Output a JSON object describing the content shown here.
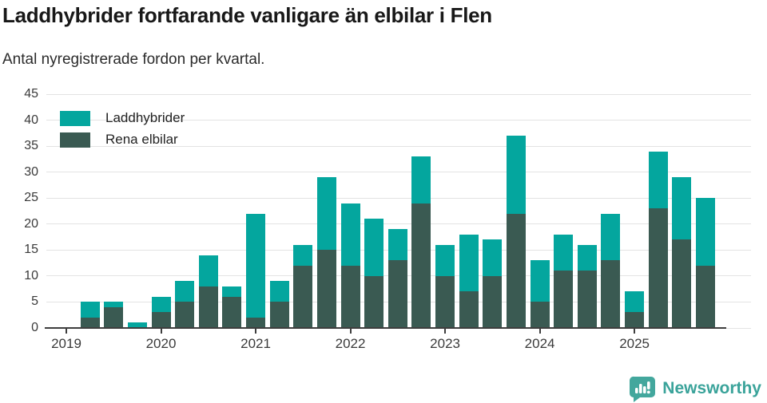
{
  "header": {
    "title": "Laddhybrider fortfarande vanligare än elbilar i Flen",
    "subtitle": "Antal nyregistrerade fordon per kvartal."
  },
  "legend": {
    "items": [
      {
        "label": "Laddhybrider",
        "color": "#04a69e"
      },
      {
        "label": "Rena elbilar",
        "color": "#3a5a52"
      }
    ]
  },
  "footer": {
    "brand": "Newsworthy",
    "brand_color": "#3aa39a",
    "icon": "newsworthy-speech-bubble-bar-chart-icon",
    "icon_color": "#43a79d"
  },
  "chart_data": {
    "type": "bar",
    "stacked": true,
    "title": "Laddhybrider fortfarande vanligare än elbilar i Flen",
    "subtitle": "Antal nyregistrerade fordon per kvartal.",
    "xlabel": "",
    "ylabel": "",
    "ylim": [
      0,
      45
    ],
    "y_ticks": [
      0,
      5,
      10,
      15,
      20,
      25,
      30,
      35,
      40,
      45
    ],
    "grid": true,
    "legend_position": "top-left",
    "x_tick_labels": [
      "2019",
      "2020",
      "2021",
      "2022",
      "2023",
      "2024",
      "2025"
    ],
    "categories": [
      "2019 Q2",
      "2019 Q3",
      "2019 Q4",
      "2020 Q1",
      "2020 Q2",
      "2020 Q3",
      "2020 Q4",
      "2021 Q1",
      "2021 Q2",
      "2021 Q3",
      "2021 Q4",
      "2022 Q1",
      "2022 Q2",
      "2022 Q3",
      "2022 Q4",
      "2023 Q1",
      "2023 Q2",
      "2023 Q3",
      "2023 Q4",
      "2024 Q1",
      "2024 Q2",
      "2024 Q3",
      "2024 Q4",
      "2025 Q1",
      "2025 Q2",
      "2025 Q3",
      "2025 Q4"
    ],
    "first_bar_quarter_offset": 1,
    "series": [
      {
        "name": "Rena elbilar",
        "color": "#3a5a52",
        "values": [
          2,
          4,
          0,
          3,
          5,
          8,
          6,
          2,
          5,
          12,
          15,
          12,
          10,
          13,
          24,
          10,
          7,
          10,
          22,
          5,
          11,
          11,
          13,
          3,
          23,
          17,
          12
        ]
      },
      {
        "name": "Laddhybrider",
        "color": "#04a69e",
        "values": [
          3,
          1,
          1,
          3,
          4,
          6,
          2,
          20,
          4,
          4,
          14,
          12,
          11,
          6,
          9,
          6,
          11,
          7,
          15,
          8,
          7,
          5,
          9,
          4,
          11,
          12,
          13
        ]
      }
    ],
    "stacked_totals": [
      5,
      5,
      1,
      6,
      9,
      14,
      8,
      22,
      9,
      16,
      29,
      24,
      21,
      19,
      33,
      16,
      18,
      17,
      37,
      13,
      18,
      16,
      22,
      7,
      34,
      29,
      25
    ]
  }
}
